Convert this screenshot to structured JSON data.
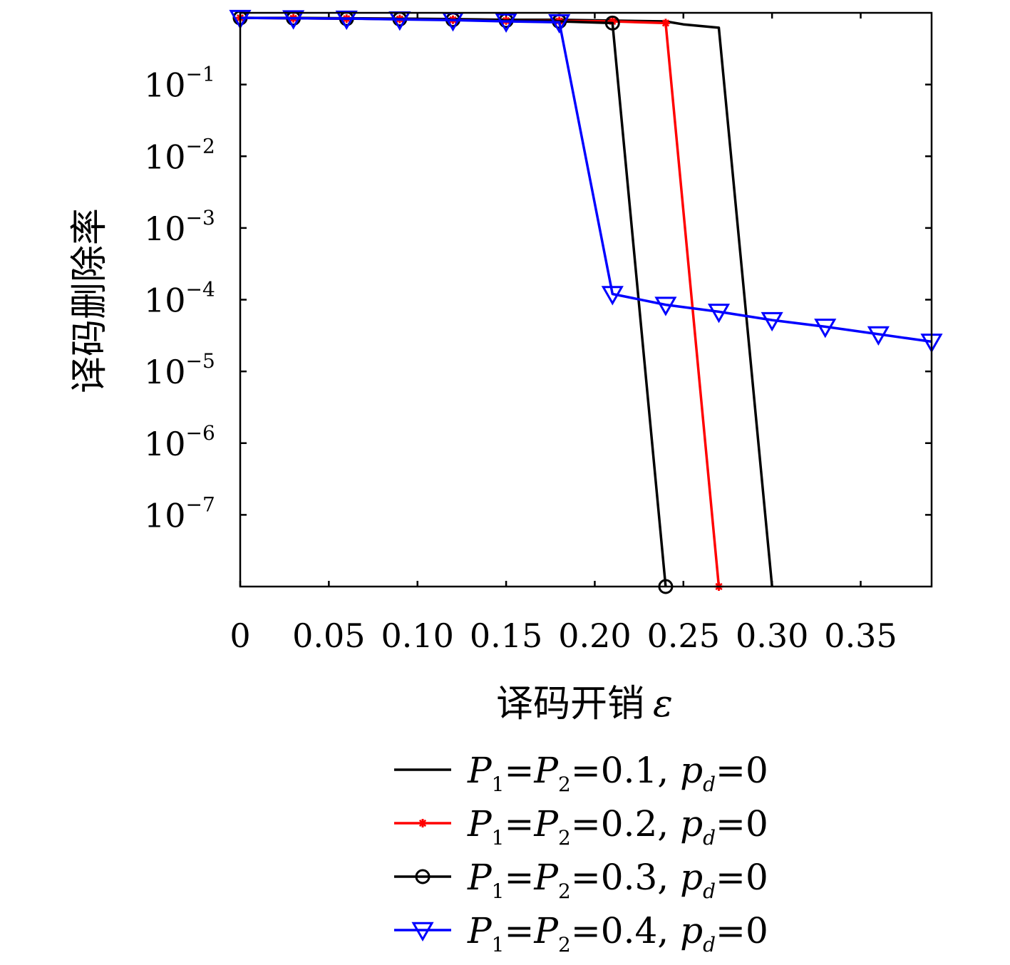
{
  "chart_data": {
    "type": "line",
    "xlabel": "译码开销",
    "xlabel_symbol": "ε",
    "ylabel": "译码删除率",
    "x_scale": "linear",
    "y_scale": "log",
    "xlim": [
      0,
      0.39
    ],
    "ylim": [
      1e-08,
      1
    ],
    "x_ticks": [
      0,
      0.05,
      0.1,
      0.15,
      0.2,
      0.25,
      0.3,
      0.35
    ],
    "x_tick_labels": [
      "0",
      "0.05",
      "0.10",
      "0.15",
      "0.20",
      "0.25",
      "0.30",
      "0.35"
    ],
    "y_ticks": [
      {
        "value": 0.1,
        "base": "10",
        "exp": "−1"
      },
      {
        "value": 0.01,
        "base": "10",
        "exp": "−2"
      },
      {
        "value": 0.001,
        "base": "10",
        "exp": "−3"
      },
      {
        "value": 0.0001,
        "base": "10",
        "exp": "−4"
      },
      {
        "value": 1e-05,
        "base": "10",
        "exp": "−5"
      },
      {
        "value": 1e-06,
        "base": "10",
        "exp": "−6"
      },
      {
        "value": 1e-07,
        "base": "10",
        "exp": "−7"
      }
    ],
    "grid": false,
    "legend_position": "bottom",
    "series": [
      {
        "name": "P1=P2=0.1, pd=0",
        "legend": {
          "p1": "P",
          "sub1": "1",
          "p2": "P",
          "sub2": "2",
          "val": "=0.1,",
          "pd": "p",
          "subd": "d",
          "tail": "=0"
        },
        "color": "#000000",
        "marker": "none",
        "x": [
          0,
          0.03,
          0.06,
          0.09,
          0.12,
          0.15,
          0.18,
          0.21,
          0.24,
          0.25,
          0.27,
          0.3
        ],
        "y": [
          0.85,
          0.85,
          0.84,
          0.83,
          0.82,
          0.8,
          0.8,
          0.78,
          0.76,
          0.69,
          0.62,
          1e-08
        ]
      },
      {
        "name": "P1=P2=0.2, pd=0",
        "legend": {
          "p1": "P",
          "sub1": "1",
          "p2": "P",
          "sub2": "2",
          "val": "=0.2,",
          "pd": "p",
          "subd": "d",
          "tail": "=0"
        },
        "color": "#ff0000",
        "marker": "star",
        "x": [
          0,
          0.03,
          0.06,
          0.09,
          0.12,
          0.15,
          0.18,
          0.21,
          0.24,
          0.27
        ],
        "y": [
          0.85,
          0.84,
          0.83,
          0.82,
          0.8,
          0.78,
          0.77,
          0.76,
          0.72,
          1e-08
        ]
      },
      {
        "name": "P1=P2=0.3, pd=0",
        "legend": {
          "p1": "P",
          "sub1": "1",
          "p2": "P",
          "sub2": "2",
          "val": "=0.3,",
          "pd": "p",
          "subd": "d",
          "tail": "=0"
        },
        "color": "#000000",
        "marker": "circle",
        "x": [
          0,
          0.03,
          0.06,
          0.09,
          0.12,
          0.15,
          0.18,
          0.21,
          0.24
        ],
        "y": [
          0.85,
          0.84,
          0.83,
          0.82,
          0.8,
          0.78,
          0.76,
          0.72,
          1e-08
        ]
      },
      {
        "name": "P1=P2=0.4, pd=0",
        "legend": {
          "p1": "P",
          "sub1": "1",
          "p2": "P",
          "sub2": "2",
          "val": "=0.4,",
          "pd": "p",
          "subd": "d",
          "tail": "=0"
        },
        "color": "#0000ff",
        "marker": "triangle-down",
        "x": [
          0,
          0.03,
          0.06,
          0.09,
          0.12,
          0.15,
          0.18,
          0.21,
          0.24,
          0.27,
          0.3,
          0.33,
          0.36,
          0.39
        ],
        "y": [
          0.85,
          0.84,
          0.83,
          0.81,
          0.79,
          0.76,
          0.74,
          0.00012,
          8.5e-05,
          6.8e-05,
          5.2e-05,
          4.2e-05,
          3.3e-05,
          2.6e-05
        ]
      }
    ]
  }
}
